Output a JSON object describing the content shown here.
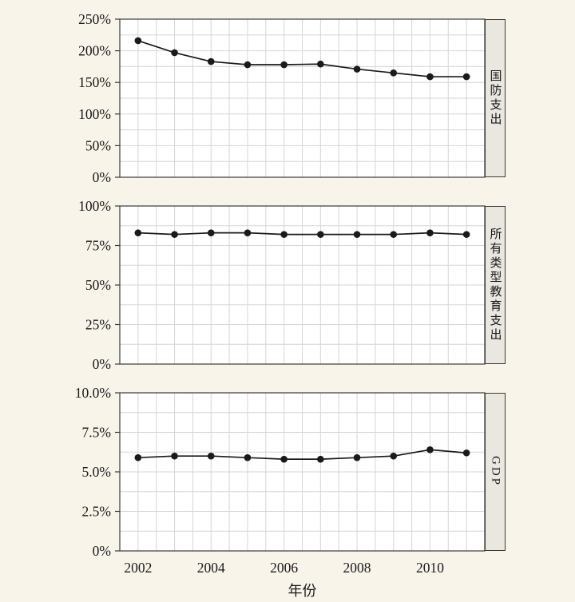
{
  "x_axis": {
    "years": [
      2002,
      2003,
      2004,
      2005,
      2006,
      2007,
      2008,
      2009,
      2010,
      2011
    ],
    "ticks": [
      2002,
      2004,
      2006,
      2008,
      2010
    ],
    "label": "年份"
  },
  "chart_data": [
    {
      "type": "line",
      "panel_label": "国防支出",
      "x": [
        2002,
        2003,
        2004,
        2005,
        2006,
        2007,
        2008,
        2009,
        2010,
        2011
      ],
      "values": [
        216,
        197,
        183,
        178,
        178,
        179,
        171,
        165,
        159,
        159
      ],
      "ylim": [
        0,
        250
      ],
      "yticks": [
        0,
        50,
        100,
        150,
        200,
        250
      ],
      "ytick_labels": [
        "0%",
        "50%",
        "100%",
        "150%",
        "200%",
        "250%"
      ],
      "grid": true,
      "legend": "none",
      "show_x_labels": false
    },
    {
      "type": "line",
      "panel_label": "所有类型教育支出",
      "x": [
        2002,
        2003,
        2004,
        2005,
        2006,
        2007,
        2008,
        2009,
        2010,
        2011
      ],
      "values": [
        83,
        82,
        83,
        83,
        82,
        82,
        82,
        82,
        83,
        82
      ],
      "ylim": [
        0,
        100
      ],
      "yticks": [
        0,
        25,
        50,
        75,
        100
      ],
      "ytick_labels": [
        "0%",
        "25%",
        "50%",
        "75%",
        "100%"
      ],
      "grid": true,
      "legend": "none",
      "show_x_labels": false
    },
    {
      "type": "line",
      "panel_label": "GDP",
      "x": [
        2002,
        2003,
        2004,
        2005,
        2006,
        2007,
        2008,
        2009,
        2010,
        2011
      ],
      "values": [
        5.9,
        6.0,
        6.0,
        5.9,
        5.8,
        5.8,
        5.9,
        6.0,
        6.4,
        6.2
      ],
      "ylim": [
        0,
        10
      ],
      "yticks": [
        0,
        2.5,
        5.0,
        7.5,
        10.0
      ],
      "ytick_labels": [
        "0%",
        "2.5%",
        "5.0%",
        "7.5%",
        "10.0%"
      ],
      "grid": true,
      "legend": "none",
      "show_x_labels": true
    }
  ],
  "colors": {
    "background": "#f8f4ea",
    "plot_background": "#ffffff",
    "grid": "#d6d6d6",
    "border": "#3a3a3a",
    "line": "#1a1a1a",
    "marker": "#1a1a1a",
    "strip_background": "#eae7e0"
  }
}
